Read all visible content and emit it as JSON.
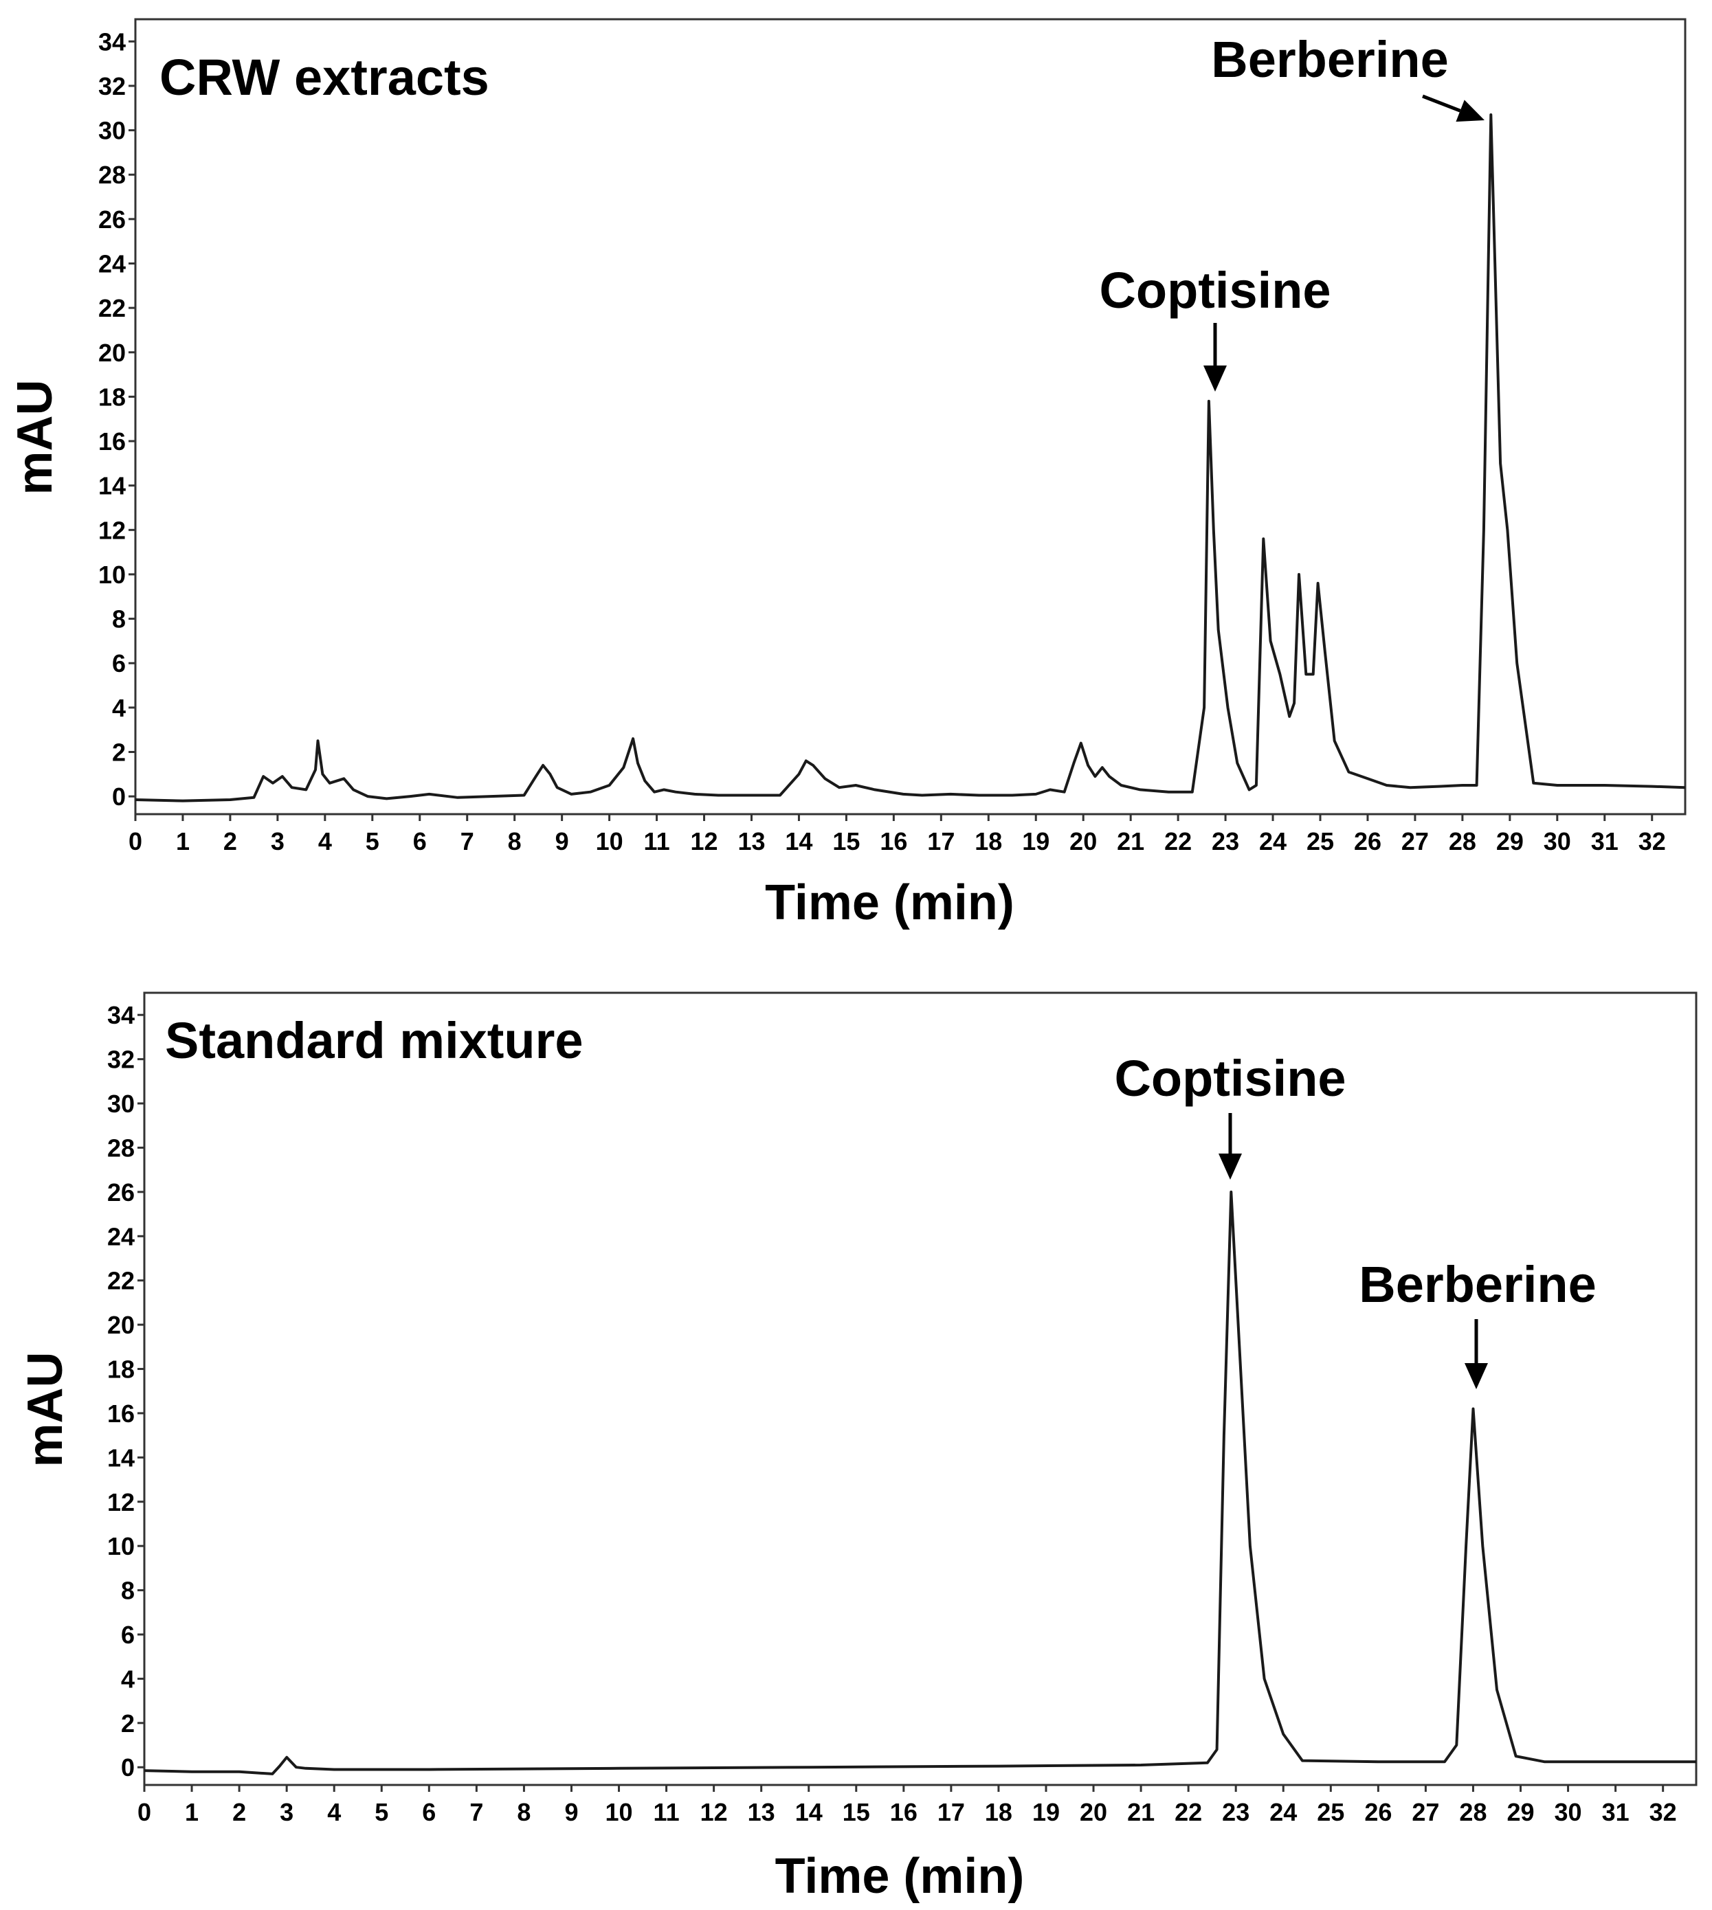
{
  "chart_data": [
    {
      "type": "line",
      "title": "CRW extracts",
      "xlabel": "Time (min)",
      "ylabel": "mAU",
      "xlim": [
        0,
        32.7
      ],
      "ylim": [
        -0.8,
        35
      ],
      "x_ticks": [
        0,
        1,
        2,
        3,
        4,
        5,
        6,
        7,
        8,
        9,
        10,
        11,
        12,
        13,
        14,
        15,
        16,
        17,
        18,
        19,
        20,
        21,
        22,
        23,
        24,
        25,
        26,
        27,
        28,
        29,
        30,
        31,
        32
      ],
      "y_ticks": [
        0,
        2,
        4,
        6,
        8,
        10,
        12,
        14,
        16,
        18,
        20,
        22,
        24,
        26,
        28,
        30,
        32,
        34
      ],
      "annotations": [
        {
          "text": "Coptisine",
          "x": 22.8,
          "y": 17.8
        },
        {
          "text": "Berberine",
          "x": 28.6,
          "y": 30.7
        }
      ],
      "series": [
        {
          "x": [
            0,
            1,
            2,
            2.5,
            2.7,
            2.9,
            3.1,
            3.3,
            3.6,
            3.8,
            3.85,
            3.95,
            4.1,
            4.4,
            4.6,
            4.9,
            5.3,
            5.8,
            6.2,
            6.8,
            7.5,
            8.2,
            8.45,
            8.6,
            8.75,
            8.9,
            9.2,
            9.6,
            10.0,
            10.3,
            10.5,
            10.6,
            10.75,
            10.95,
            11.15,
            11.4,
            11.8,
            12.3,
            13.0,
            13.6,
            14.0,
            14.15,
            14.3,
            14.55,
            14.85,
            15.2,
            15.6,
            16.2,
            16.6,
            17.2,
            17.8,
            18.5,
            19.0,
            19.3,
            19.6,
            19.8,
            19.95,
            20.1,
            20.25,
            20.4,
            20.55,
            20.8,
            21.2,
            21.8,
            22.3,
            22.55,
            22.65,
            22.75,
            22.85,
            23.05,
            23.25,
            23.5,
            23.65,
            23.8,
            23.95,
            24.15,
            24.35,
            24.45,
            24.55,
            24.7,
            24.85,
            24.95,
            25.1,
            25.3,
            25.6,
            26.0,
            26.4,
            26.9,
            27.5,
            28.0,
            28.3,
            28.45,
            28.6,
            28.8,
            28.95,
            29.15,
            29.5,
            30.0,
            31.0,
            32.0,
            32.7
          ],
          "y": [
            -0.15,
            -0.2,
            -0.15,
            -0.05,
            0.9,
            0.6,
            0.9,
            0.4,
            0.3,
            1.2,
            2.5,
            1.0,
            0.6,
            0.8,
            0.3,
            0.0,
            -0.1,
            0.0,
            0.1,
            -0.05,
            0.0,
            0.05,
            0.9,
            1.4,
            1.0,
            0.4,
            0.1,
            0.2,
            0.5,
            1.3,
            2.6,
            1.5,
            0.7,
            0.2,
            0.3,
            0.2,
            0.1,
            0.05,
            0.05,
            0.05,
            1.0,
            1.6,
            1.4,
            0.8,
            0.4,
            0.5,
            0.3,
            0.1,
            0.05,
            0.1,
            0.05,
            0.05,
            0.1,
            0.3,
            0.2,
            1.5,
            2.4,
            1.4,
            0.9,
            1.3,
            0.9,
            0.5,
            0.3,
            0.2,
            0.2,
            4.0,
            17.8,
            12.0,
            7.5,
            4.0,
            1.5,
            0.3,
            0.5,
            11.6,
            7.0,
            5.5,
            3.6,
            4.2,
            10.0,
            5.5,
            5.5,
            9.6,
            6.5,
            2.5,
            1.1,
            0.8,
            0.5,
            0.4,
            0.45,
            0.5,
            0.5,
            12.0,
            30.7,
            15.0,
            12.0,
            6.0,
            0.6,
            0.5,
            0.5,
            0.45,
            0.4
          ]
        }
      ]
    },
    {
      "type": "line",
      "title": "Standard mixture",
      "xlabel": "Time (min)",
      "ylabel": "mAU",
      "xlim": [
        0,
        32.7
      ],
      "ylim": [
        -0.8,
        35
      ],
      "x_ticks": [
        0,
        1,
        2,
        3,
        4,
        5,
        6,
        7,
        8,
        9,
        10,
        11,
        12,
        13,
        14,
        15,
        16,
        17,
        18,
        19,
        20,
        21,
        22,
        23,
        24,
        25,
        26,
        27,
        28,
        29,
        30,
        31,
        32
      ],
      "y_ticks": [
        0,
        2,
        4,
        6,
        8,
        10,
        12,
        14,
        16,
        18,
        20,
        22,
        24,
        26,
        28,
        30,
        32,
        34
      ],
      "annotations": [
        {
          "text": "Coptisine",
          "x": 22.9,
          "y": 26.0
        },
        {
          "text": "Berberine",
          "x": 28.0,
          "y": 16.2
        }
      ],
      "series": [
        {
          "x": [
            0,
            1,
            2,
            2.7,
            2.85,
            3.0,
            3.2,
            3.4,
            4.0,
            6.0,
            10.0,
            14.0,
            18.0,
            21.0,
            22.4,
            22.6,
            22.75,
            22.9,
            23.1,
            23.3,
            23.6,
            24.0,
            24.4,
            26.0,
            27.4,
            27.65,
            27.85,
            28.0,
            28.2,
            28.5,
            28.9,
            29.5,
            31.0,
            32.7
          ],
          "y": [
            -0.15,
            -0.2,
            -0.2,
            -0.3,
            0.05,
            0.45,
            0.0,
            -0.05,
            -0.1,
            -0.1,
            -0.05,
            0.0,
            0.05,
            0.1,
            0.2,
            0.8,
            15.0,
            26.0,
            18.0,
            10.0,
            4.0,
            1.5,
            0.3,
            0.25,
            0.25,
            1.0,
            10.0,
            16.2,
            10.0,
            3.5,
            0.5,
            0.25,
            0.25,
            0.25
          ]
        }
      ]
    }
  ]
}
